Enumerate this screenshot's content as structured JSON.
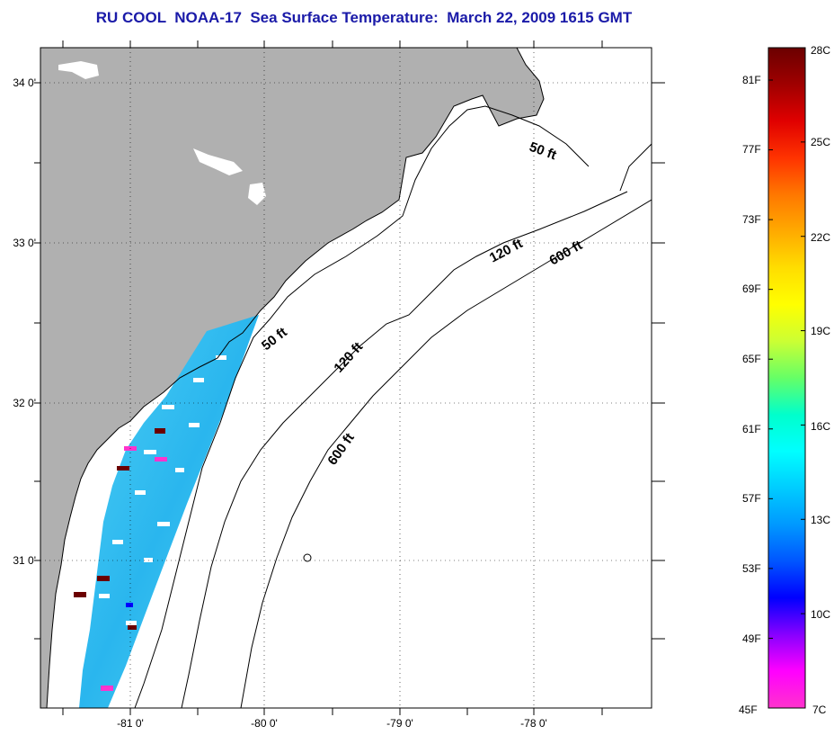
{
  "title": "RU COOL  NOAA-17  Sea Surface Temperature:  March 22, 2009 1615 GMT",
  "map": {
    "lat_labels": [
      "34 0'",
      "33 0'",
      "32 0'",
      "31 0'"
    ],
    "lon_labels": [
      "-81 0'",
      "-80 0'",
      "-79 0'",
      "-78 0'"
    ],
    "contour_labels": [
      "50 ft",
      "120 ft",
      "600 ft",
      "50 ft",
      "120 ft",
      "600 ft"
    ]
  },
  "colorbar": {
    "fahrenheit": [
      "81F",
      "77F",
      "73F",
      "69F",
      "65F",
      "61F",
      "57F",
      "53F",
      "49F",
      "45F"
    ],
    "celsius": [
      "28C",
      "25C",
      "22C",
      "19C",
      "16C",
      "13C",
      "10C",
      "7C"
    ],
    "colors": [
      "#6b0000",
      "#a00000",
      "#e00000",
      "#ff3300",
      "#ff7700",
      "#ffaa00",
      "#ffdd00",
      "#ffff00",
      "#ccff33",
      "#66ff66",
      "#00ffcc",
      "#00ffff",
      "#00ccff",
      "#0099ff",
      "#0055ff",
      "#0000ff",
      "#8800ff",
      "#ff00ff",
      "#ff33cc"
    ]
  },
  "colors": {
    "land": "#b0b0b0",
    "ocean": "#ffffff",
    "title": "#1a1aa8",
    "sst_swath": "#3fc3f0"
  }
}
